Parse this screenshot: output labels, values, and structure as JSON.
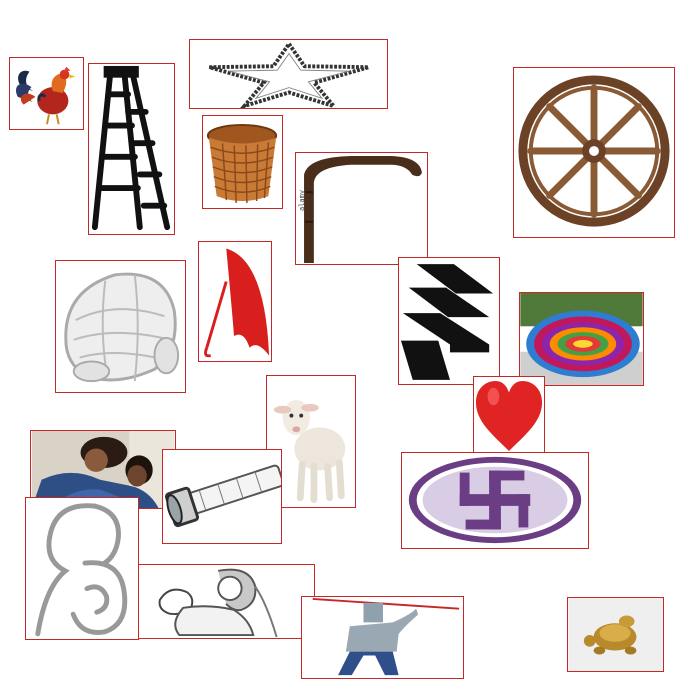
{
  "canvas": {
    "background": "#ffffff",
    "tile_border_color": "#c62828"
  },
  "tiles": [
    {
      "name": "rooster",
      "icon": "rooster-icon"
    },
    {
      "name": "ladder",
      "icon": "ladder-icon"
    },
    {
      "name": "star",
      "icon": "star-icon"
    },
    {
      "name": "basket",
      "icon": "basket-icon"
    },
    {
      "name": "walking-cane",
      "icon": "cane-icon",
      "stamp_text": "alamy"
    },
    {
      "name": "wagon-wheel",
      "icon": "wheel-icon"
    },
    {
      "name": "turtle-sketch",
      "icon": "turtle-icon"
    },
    {
      "name": "umbrella",
      "icon": "umbrella-icon"
    },
    {
      "name": "steps",
      "icon": "steps-icon"
    },
    {
      "name": "colorful-mat",
      "icon": "mat-icon"
    },
    {
      "name": "lamb",
      "icon": "lamb-icon"
    },
    {
      "name": "heart",
      "icon": "heart-icon"
    },
    {
      "name": "mother-hugging-child",
      "icon": "hug-photo-icon"
    },
    {
      "name": "flashlight",
      "icon": "flashlight-icon"
    },
    {
      "name": "swastika-emblem",
      "icon": "swastika-icon"
    },
    {
      "name": "mother-child-line-art",
      "icon": "mother-child-icon"
    },
    {
      "name": "mother-baby-sketch",
      "icon": "mother-baby-icon"
    },
    {
      "name": "person-with-pole",
      "icon": "person-pole-icon"
    },
    {
      "name": "brass-turtle",
      "icon": "brass-turtle-icon"
    }
  ]
}
